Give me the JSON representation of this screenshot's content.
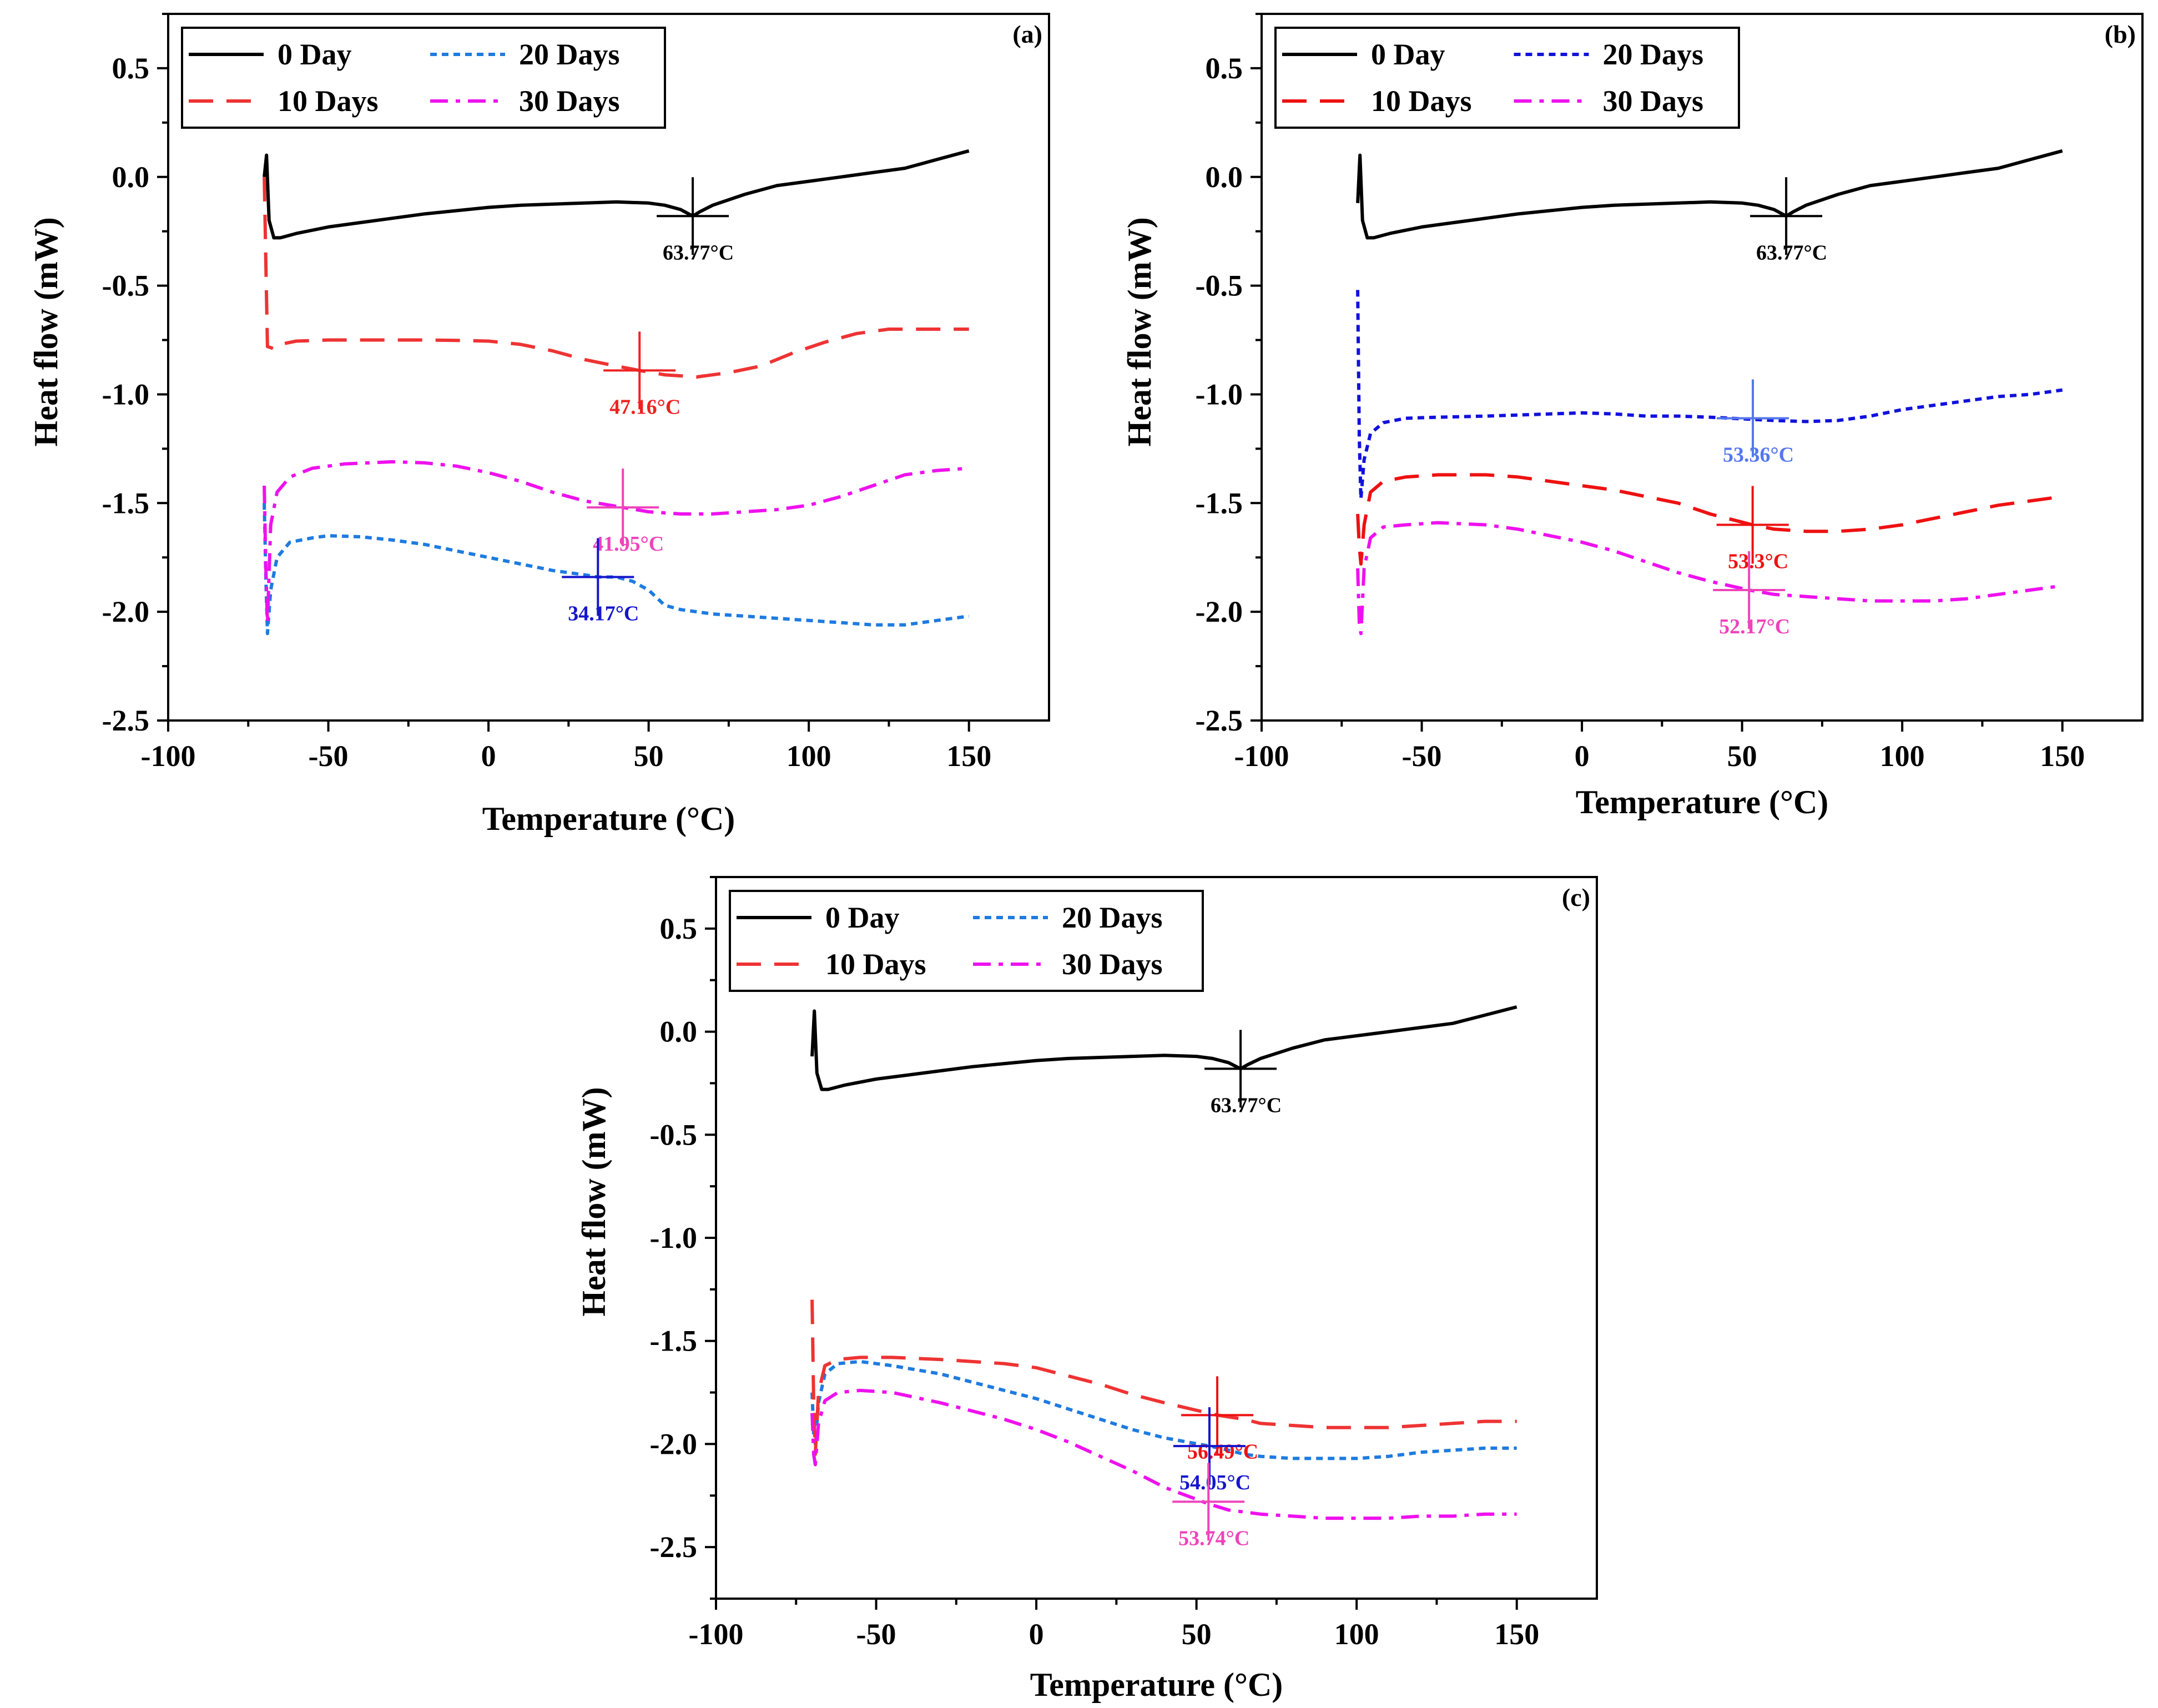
{
  "chart_data": [
    {
      "type": "line",
      "panel_label": "(a)",
      "xlabel": "Temperature (°C)",
      "ylabel": "Heat flow (mW)",
      "xlim": [
        -100,
        175
      ],
      "ylim": [
        -2.5,
        0.75
      ],
      "xticks": [
        -100,
        -50,
        0,
        50,
        100,
        150
      ],
      "yticks": [
        0.5,
        0.0,
        -0.5,
        -1.0,
        -1.5,
        -2.0,
        -2.5
      ],
      "xtick_labels": [
        "-100",
        "-50",
        "0",
        "50",
        "100",
        "150"
      ],
      "ytick_labels": [
        "0.5",
        "0.0",
        "-0.5",
        "-1.0",
        "-1.5",
        "-2.0",
        "-2.5"
      ],
      "legend_position": "top-left",
      "series": [
        {
          "name": "0 Day",
          "color": "#000000",
          "style": "solid",
          "x": [
            -70,
            -69.3,
            -68.5,
            -67,
            -65,
            -60,
            -50,
            -40,
            -30,
            -20,
            -10,
            0,
            10,
            20,
            30,
            40,
            50,
            55,
            60,
            63.77,
            66,
            70,
            80,
            90,
            100,
            110,
            120,
            130,
            140,
            150
          ],
          "y": [
            0.0,
            0.1,
            -0.2,
            -0.28,
            -0.28,
            -0.26,
            -0.23,
            -0.21,
            -0.19,
            -0.17,
            -0.155,
            -0.14,
            -0.13,
            -0.125,
            -0.12,
            -0.115,
            -0.12,
            -0.13,
            -0.15,
            -0.18,
            -0.16,
            -0.13,
            -0.08,
            -0.04,
            -0.02,
            0.0,
            0.02,
            0.04,
            0.08,
            0.12
          ]
        },
        {
          "name": "10 Days",
          "color": "#ee3333",
          "style": "dashed",
          "x": [
            -70,
            -69.5,
            -69,
            -67,
            -65,
            -60,
            -50,
            -40,
            -30,
            -20,
            -10,
            0,
            10,
            20,
            30,
            40,
            47.16,
            55,
            65,
            75,
            85,
            95,
            105,
            115,
            125,
            135,
            150
          ],
          "y": [
            0.0,
            -0.4,
            -0.78,
            -0.79,
            -0.77,
            -0.755,
            -0.75,
            -0.75,
            -0.75,
            -0.75,
            -0.752,
            -0.755,
            -0.77,
            -0.8,
            -0.84,
            -0.87,
            -0.89,
            -0.91,
            -0.92,
            -0.9,
            -0.87,
            -0.81,
            -0.76,
            -0.72,
            -0.7,
            -0.7,
            -0.7
          ]
        },
        {
          "name": "20 Days",
          "color": "#1e7be0",
          "style": "dotted",
          "x": [
            -70,
            -69.5,
            -69,
            -68,
            -66,
            -62,
            -55,
            -50,
            -40,
            -30,
            -20,
            -10,
            0,
            10,
            20,
            30,
            34.17,
            40,
            45,
            50,
            55,
            60,
            70,
            80,
            90,
            100,
            110,
            120,
            130,
            140,
            150
          ],
          "y": [
            -1.5,
            -1.85,
            -2.1,
            -1.9,
            -1.75,
            -1.68,
            -1.66,
            -1.65,
            -1.655,
            -1.67,
            -1.69,
            -1.72,
            -1.75,
            -1.78,
            -1.81,
            -1.83,
            -1.84,
            -1.84,
            -1.86,
            -1.9,
            -1.97,
            -1.99,
            -2.01,
            -2.02,
            -2.03,
            -2.04,
            -2.05,
            -2.06,
            -2.06,
            -2.04,
            -2.02
          ]
        },
        {
          "name": "30 Days",
          "color": "#ee11ee",
          "style": "dashdot",
          "x": [
            -70,
            -69.5,
            -69,
            -68,
            -66,
            -62,
            -55,
            -45,
            -30,
            -20,
            -10,
            0,
            10,
            20,
            30,
            41.95,
            50,
            60,
            70,
            80,
            90,
            100,
            110,
            120,
            130,
            140,
            150
          ],
          "y": [
            -1.42,
            -1.8,
            -2.05,
            -1.6,
            -1.45,
            -1.38,
            -1.34,
            -1.32,
            -1.31,
            -1.315,
            -1.33,
            -1.36,
            -1.4,
            -1.45,
            -1.49,
            -1.52,
            -1.54,
            -1.55,
            -1.55,
            -1.54,
            -1.53,
            -1.51,
            -1.47,
            -1.42,
            -1.37,
            -1.35,
            -1.34
          ]
        }
      ],
      "annotations": [
        {
          "text": "63.77°C",
          "x": 63.77,
          "y": -0.18,
          "color": "#000000"
        },
        {
          "text": "47.16°C",
          "x": 47.16,
          "y": -0.89,
          "color": "#ee2222"
        },
        {
          "text": "41.95°C",
          "x": 41.95,
          "y": -1.52,
          "color": "#ee44bb"
        },
        {
          "text": "34.17°C",
          "x": 34.17,
          "y": -1.84,
          "color": "#1515cc"
        }
      ]
    },
    {
      "type": "line",
      "panel_label": "(b)",
      "xlabel": "Temperature (°C)",
      "ylabel": "Heat flow (mW)",
      "xlim": [
        -100,
        175
      ],
      "ylim": [
        -2.5,
        0.75
      ],
      "xticks": [
        -100,
        -50,
        0,
        50,
        100,
        150
      ],
      "yticks": [
        0.5,
        0.0,
        -0.5,
        -1.0,
        -1.5,
        -2.0,
        -2.5
      ],
      "xtick_labels": [
        "-100",
        "-50",
        "0",
        "50",
        "100",
        "150"
      ],
      "ytick_labels": [
        "0.5",
        "0.0",
        "-0.5",
        "-1.0",
        "-1.5",
        "-2.0",
        "-2.5"
      ],
      "legend_position": "top-left",
      "series": [
        {
          "name": "0 Day",
          "color": "#000000",
          "style": "solid",
          "x": [
            -70,
            -69.3,
            -68.5,
            -67,
            -65,
            -60,
            -50,
            -40,
            -30,
            -20,
            -10,
            0,
            10,
            20,
            30,
            40,
            50,
            55,
            60,
            63.77,
            66,
            70,
            80,
            90,
            100,
            110,
            120,
            130,
            140,
            150
          ],
          "y": [
            -0.12,
            0.1,
            -0.2,
            -0.28,
            -0.28,
            -0.26,
            -0.23,
            -0.21,
            -0.19,
            -0.17,
            -0.155,
            -0.14,
            -0.13,
            -0.125,
            -0.12,
            -0.115,
            -0.12,
            -0.13,
            -0.15,
            -0.18,
            -0.16,
            -0.13,
            -0.08,
            -0.04,
            -0.02,
            0.0,
            0.02,
            0.04,
            0.08,
            0.12
          ]
        },
        {
          "name": "20 Days",
          "color": "#1111dd",
          "style": "dotted",
          "x": [
            -70,
            -69.5,
            -69,
            -68,
            -66,
            -62,
            -55,
            -45,
            -30,
            -20,
            -10,
            0,
            10,
            20,
            30,
            40,
            53.36,
            60,
            70,
            80,
            90,
            100,
            110,
            120,
            130,
            140,
            150
          ],
          "y": [
            -0.52,
            -1.2,
            -1.48,
            -1.3,
            -1.18,
            -1.13,
            -1.11,
            -1.105,
            -1.1,
            -1.095,
            -1.09,
            -1.085,
            -1.09,
            -1.1,
            -1.1,
            -1.105,
            -1.115,
            -1.12,
            -1.125,
            -1.12,
            -1.1,
            -1.07,
            -1.05,
            -1.03,
            -1.01,
            -1.0,
            -0.98
          ]
        },
        {
          "name": "10 Days",
          "color": "#ee1111",
          "style": "dashed",
          "x": [
            -70,
            -69.5,
            -69,
            -68,
            -66,
            -62,
            -55,
            -45,
            -30,
            -20,
            -10,
            0,
            10,
            20,
            30,
            40,
            53.3,
            60,
            70,
            80,
            90,
            100,
            110,
            120,
            130,
            140,
            150
          ],
          "y": [
            -1.55,
            -1.7,
            -1.78,
            -1.6,
            -1.45,
            -1.4,
            -1.38,
            -1.37,
            -1.37,
            -1.38,
            -1.4,
            -1.42,
            -1.44,
            -1.47,
            -1.5,
            -1.55,
            -1.6,
            -1.62,
            -1.63,
            -1.63,
            -1.62,
            -1.6,
            -1.57,
            -1.54,
            -1.51,
            -1.49,
            -1.47
          ]
        },
        {
          "name": "30 Days",
          "color": "#ee11ee",
          "style": "dashdot",
          "x": [
            -70,
            -69.5,
            -69,
            -68,
            -66,
            -62,
            -55,
            -45,
            -30,
            -20,
            -10,
            0,
            10,
            20,
            30,
            40,
            52.17,
            60,
            70,
            80,
            90,
            100,
            110,
            120,
            130,
            140,
            150
          ],
          "y": [
            -1.8,
            -2.05,
            -2.1,
            -1.8,
            -1.66,
            -1.61,
            -1.6,
            -1.59,
            -1.6,
            -1.62,
            -1.65,
            -1.68,
            -1.72,
            -1.77,
            -1.82,
            -1.86,
            -1.9,
            -1.92,
            -1.93,
            -1.94,
            -1.95,
            -1.95,
            -1.95,
            -1.94,
            -1.92,
            -1.9,
            -1.88
          ]
        }
      ],
      "annotations": [
        {
          "text": "63.77°C",
          "x": 63.77,
          "y": -0.18,
          "color": "#000000"
        },
        {
          "text": "53.36°C",
          "x": 53.36,
          "y": -1.11,
          "color": "#5577ee"
        },
        {
          "text": "53.3°C",
          "x": 53.3,
          "y": -1.6,
          "color": "#ee1111"
        },
        {
          "text": "52.17°C",
          "x": 52.17,
          "y": -1.9,
          "color": "#ee44bb"
        }
      ]
    },
    {
      "type": "line",
      "panel_label": "(c)",
      "xlabel": "Temperature (°C)",
      "ylabel": "Heat flow (mW)",
      "xlim": [
        -100,
        175
      ],
      "ylim": [
        -2.75,
        0.75
      ],
      "xticks": [
        -100,
        -50,
        0,
        50,
        100,
        150
      ],
      "yticks": [
        0.5,
        0.0,
        -0.5,
        -1.0,
        -1.5,
        -2.0,
        -2.5
      ],
      "xtick_labels": [
        "-100",
        "-50",
        "0",
        "50",
        "100",
        "150"
      ],
      "ytick_labels": [
        "0.5",
        "0.0",
        "-0.5",
        "-1.0",
        "-1.5",
        "-2.0",
        "-2.5"
      ],
      "legend_position": "top-left",
      "series": [
        {
          "name": "0 Day",
          "color": "#000000",
          "style": "solid",
          "x": [
            -70,
            -69.3,
            -68.5,
            -67,
            -65,
            -60,
            -50,
            -40,
            -30,
            -20,
            -10,
            0,
            10,
            20,
            30,
            40,
            50,
            55,
            60,
            63.77,
            66,
            70,
            80,
            90,
            100,
            110,
            120,
            130,
            140,
            150
          ],
          "y": [
            -0.12,
            0.1,
            -0.2,
            -0.28,
            -0.28,
            -0.26,
            -0.23,
            -0.21,
            -0.19,
            -0.17,
            -0.155,
            -0.14,
            -0.13,
            -0.125,
            -0.12,
            -0.115,
            -0.12,
            -0.13,
            -0.15,
            -0.18,
            -0.16,
            -0.13,
            -0.08,
            -0.04,
            -0.02,
            0.0,
            0.02,
            0.04,
            0.08,
            0.12
          ]
        },
        {
          "name": "20 Days",
          "color": "#1e7be0",
          "style": "dotted",
          "x": [
            -70,
            -69.5,
            -69,
            -68,
            -66,
            -62,
            -55,
            -45,
            -30,
            -20,
            -10,
            0,
            10,
            20,
            30,
            40,
            54.05,
            60,
            65,
            70,
            80,
            90,
            100,
            110,
            120,
            130,
            140,
            150
          ],
          "y": [
            -1.75,
            -1.95,
            -2.0,
            -1.8,
            -1.66,
            -1.61,
            -1.6,
            -1.62,
            -1.66,
            -1.7,
            -1.74,
            -1.78,
            -1.83,
            -1.88,
            -1.93,
            -1.97,
            -2.01,
            -2.03,
            -2.05,
            -2.06,
            -2.07,
            -2.07,
            -2.07,
            -2.06,
            -2.04,
            -2.03,
            -2.02,
            -2.02
          ]
        },
        {
          "name": "10 Days",
          "color": "#ee3333",
          "style": "dashed",
          "x": [
            -70,
            -69.5,
            -69,
            -68,
            -66,
            -62,
            -55,
            -45,
            -30,
            -20,
            -10,
            0,
            10,
            20,
            30,
            40,
            56.49,
            65,
            70,
            80,
            90,
            100,
            110,
            120,
            130,
            140,
            150
          ],
          "y": [
            -1.3,
            -1.8,
            -2.05,
            -1.75,
            -1.62,
            -1.59,
            -1.58,
            -1.58,
            -1.59,
            -1.6,
            -1.61,
            -1.63,
            -1.67,
            -1.71,
            -1.76,
            -1.8,
            -1.86,
            -1.88,
            -1.9,
            -1.91,
            -1.92,
            -1.92,
            -1.92,
            -1.91,
            -1.9,
            -1.89,
            -1.89
          ]
        },
        {
          "name": "30 Days",
          "color": "#ee11ee",
          "style": "dashdot",
          "x": [
            -70,
            -69.5,
            -69,
            -68,
            -66,
            -62,
            -55,
            -45,
            -30,
            -20,
            -10,
            0,
            10,
            20,
            30,
            40,
            53.74,
            60,
            70,
            80,
            90,
            100,
            110,
            120,
            130,
            140,
            150
          ],
          "y": [
            -1.85,
            -2.05,
            -2.1,
            -1.9,
            -1.79,
            -1.75,
            -1.74,
            -1.75,
            -1.8,
            -1.84,
            -1.88,
            -1.93,
            -1.99,
            -2.06,
            -2.13,
            -2.21,
            -2.29,
            -2.32,
            -2.34,
            -2.35,
            -2.36,
            -2.36,
            -2.36,
            -2.35,
            -2.35,
            -2.34,
            -2.34
          ]
        }
      ],
      "annotations": [
        {
          "text": "63.77°C",
          "x": 63.77,
          "y": -0.18,
          "color": "#000000"
        },
        {
          "text": "56.49°C",
          "x": 56.49,
          "y": -1.86,
          "color": "#ee1111"
        },
        {
          "text": "54.05°C",
          "x": 54.05,
          "y": -2.01,
          "color": "#1515cc"
        },
        {
          "text": "53.74°C",
          "x": 53.74,
          "y": -2.28,
          "color": "#ee44bb"
        }
      ]
    }
  ]
}
